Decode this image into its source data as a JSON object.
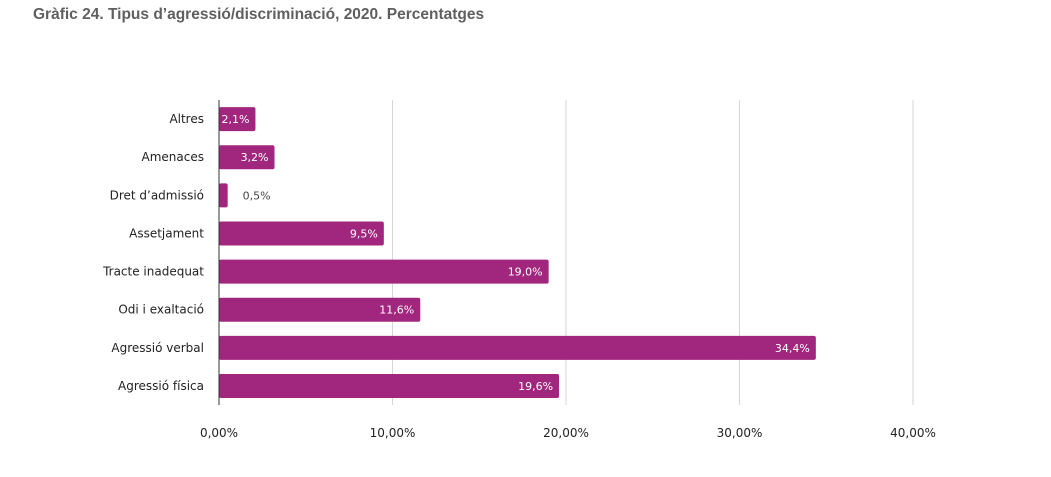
{
  "chart_data": {
    "type": "bar",
    "orientation": "horizontal",
    "title": "Gràfic 24. Tipus d’agressió/discriminació, 2020. Percentatges",
    "categories": [
      "Altres",
      "Amenaces",
      "Dret d’admissió",
      "Assetjament",
      "Tracte inadequat",
      "Odi i exaltació",
      "Agressió verbal",
      "Agressió física"
    ],
    "values": [
      2.1,
      3.2,
      0.5,
      9.5,
      19.0,
      11.6,
      34.4,
      19.6
    ],
    "value_labels": [
      "2,1%",
      "3,2%",
      "0,5%",
      "9,5%",
      "19,0%",
      "11,6%",
      "34,4%",
      "19,6%"
    ],
    "xticks": [
      0,
      10,
      20,
      30,
      40
    ],
    "xtick_labels": [
      "0,00%",
      "10,00%",
      "20,00%",
      "30,00%",
      "40,00%"
    ],
    "xlim": [
      0,
      40
    ],
    "xlabel": "",
    "ylabel": "",
    "grid": "vertical",
    "legend": "none",
    "bar_color": "#a0277d"
  }
}
